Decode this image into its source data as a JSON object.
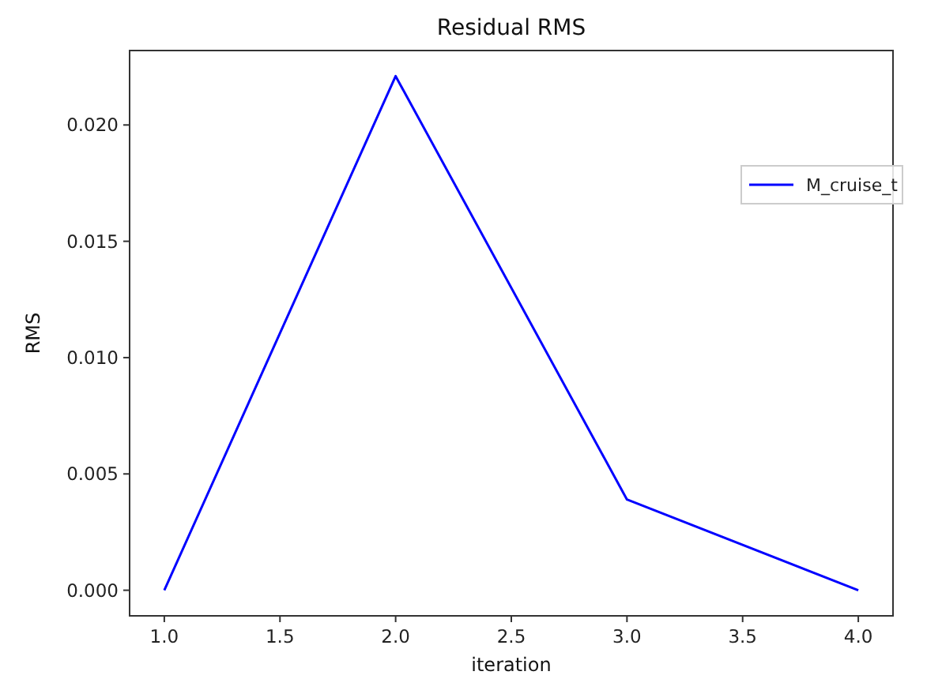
{
  "chart_data": {
    "type": "line",
    "title": "Residual RMS",
    "xlabel": "iteration",
    "ylabel": "RMS",
    "x": [
      1,
      2,
      3,
      4
    ],
    "series": [
      {
        "name": "M_cruise_t",
        "color": "#0000ff",
        "values": [
          0,
          0.0221,
          0.0039,
          0
        ]
      }
    ],
    "xlim": [
      0.85,
      4.15
    ],
    "xticks": [
      {
        "value": 1,
        "label": "1.0"
      },
      {
        "value": 1.5,
        "label": "1.5"
      },
      {
        "value": 2,
        "label": "2.0"
      },
      {
        "value": 2.5,
        "label": "2.5"
      },
      {
        "value": 3,
        "label": "3.0"
      },
      {
        "value": 3.5,
        "label": "3.5"
      },
      {
        "value": 4,
        "label": "4.0"
      }
    ],
    "ylim": [
      -0.0011,
      0.0232
    ],
    "yticks": [
      {
        "value": 0,
        "label": "0.000"
      },
      {
        "value": 0.005,
        "label": "0.005"
      },
      {
        "value": 0.01,
        "label": "0.010"
      },
      {
        "value": 0.015,
        "label": "0.015"
      },
      {
        "value": 0.02,
        "label": "0.020"
      }
    ],
    "grid": false,
    "legend": "right",
    "marker": "none",
    "line_style": "solid"
  }
}
